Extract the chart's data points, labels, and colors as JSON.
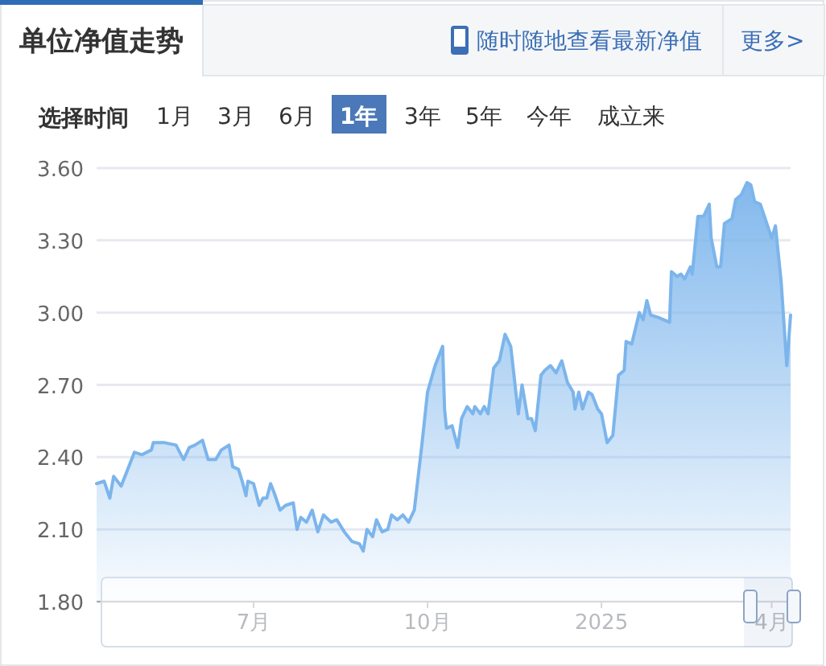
{
  "chart_data": {
    "type": "area",
    "title": "单位净值走势",
    "annotations": [
      "随时随地查看最新净值",
      "更多>",
      "选择时间",
      "1月",
      "3月",
      "6月",
      "1年",
      "3年",
      "5年",
      "今年",
      "成立来"
    ],
    "color": "#7cb5ec",
    "grid": "y",
    "marker": "none",
    "line_style": "solid",
    "xlim": [
      "2024-04-09",
      "2025-04-11"
    ],
    "xticks": [
      {
        "value": "2024-07-01",
        "label": "7月"
      },
      {
        "value": "2024-10-01",
        "label": "10月"
      },
      {
        "value": "2025-01-01",
        "label": "2025"
      },
      {
        "value": "2025-04-01",
        "label": "4月"
      }
    ],
    "ylim": [
      1.8,
      3.6
    ],
    "yticks": [
      {
        "value": 1.8,
        "label": "1.80"
      },
      {
        "value": 2.1,
        "label": "2.10"
      },
      {
        "value": 2.4,
        "label": "2.40"
      },
      {
        "value": 2.7,
        "label": "2.70"
      },
      {
        "value": 3.0,
        "label": "3.00"
      },
      {
        "value": 3.3,
        "label": "3.30"
      },
      {
        "value": 3.6,
        "label": "3.60"
      }
    ],
    "x": [
      "2024-04-09",
      "2024-04-13",
      "2024-04-16",
      "2024-04-18",
      "2024-04-22",
      "2024-04-28",
      "2024-04-29",
      "2024-05-03",
      "2024-05-08",
      "2024-05-09",
      "2024-05-15",
      "2024-05-21",
      "2024-05-25",
      "2024-05-28",
      "2024-05-31",
      "2024-06-04",
      "2024-06-07",
      "2024-06-11",
      "2024-06-14",
      "2024-06-18",
      "2024-06-20",
      "2024-06-23",
      "2024-06-25",
      "2024-06-27",
      "2024-06-28",
      "2024-07-01",
      "2024-07-04",
      "2024-07-06",
      "2024-07-08",
      "2024-07-10",
      "2024-07-12",
      "2024-07-15",
      "2024-07-18",
      "2024-07-22",
      "2024-07-24",
      "2024-07-26",
      "2024-07-29",
      "2024-08-01",
      "2024-08-04",
      "2024-08-07",
      "2024-08-11",
      "2024-08-14",
      "2024-08-18",
      "2024-08-22",
      "2024-08-26",
      "2024-08-28",
      "2024-08-30",
      "2024-09-02",
      "2024-09-04",
      "2024-09-07",
      "2024-09-10",
      "2024-09-12",
      "2024-09-15",
      "2024-09-18",
      "2024-09-21",
      "2024-09-24",
      "2024-09-28",
      "2024-10-01",
      "2024-10-05",
      "2024-10-09",
      "2024-10-10",
      "2024-10-11",
      "2024-10-14",
      "2024-10-17",
      "2024-10-19",
      "2024-10-22",
      "2024-10-25",
      "2024-10-26",
      "2024-10-29",
      "2024-10-31",
      "2024-11-02",
      "2024-11-05",
      "2024-11-08",
      "2024-11-11",
      "2024-11-14",
      "2024-11-17",
      "2024-11-18",
      "2024-11-20",
      "2024-11-23",
      "2024-11-25",
      "2024-11-27",
      "2024-11-30",
      "2024-12-02",
      "2024-12-05",
      "2024-12-08",
      "2024-12-11",
      "2024-12-14",
      "2024-12-17",
      "2024-12-18",
      "2024-12-20",
      "2024-12-22",
      "2024-12-25",
      "2024-12-27",
      "2024-12-30",
      "2025-01-01",
      "2025-01-04",
      "2025-01-07",
      "2025-01-10",
      "2025-01-13",
      "2025-01-14",
      "2025-01-17",
      "2025-01-21",
      "2025-01-23",
      "2025-01-25",
      "2025-01-27",
      "2025-01-31",
      "2025-02-06",
      "2025-02-07",
      "2025-02-10",
      "2025-02-12",
      "2025-02-14",
      "2025-02-17",
      "2025-02-18",
      "2025-02-21",
      "2025-02-24",
      "2025-02-27",
      "2025-02-28",
      "2025-03-03",
      "2025-03-05",
      "2025-03-07",
      "2025-03-11",
      "2025-03-13",
      "2025-03-16",
      "2025-03-19",
      "2025-03-21",
      "2025-03-23",
      "2025-03-26",
      "2025-03-29",
      "2025-04-01",
      "2025-04-03",
      "2025-04-06",
      "2025-04-09",
      "2025-04-11"
    ],
    "values": [
      2.29,
      2.3,
      2.23,
      2.32,
      2.28,
      2.4,
      2.42,
      2.41,
      2.43,
      2.46,
      2.46,
      2.45,
      2.39,
      2.44,
      2.45,
      2.47,
      2.39,
      2.39,
      2.43,
      2.45,
      2.36,
      2.35,
      2.3,
      2.24,
      2.3,
      2.29,
      2.2,
      2.23,
      2.23,
      2.29,
      2.25,
      2.18,
      2.2,
      2.21,
      2.1,
      2.15,
      2.13,
      2.18,
      2.09,
      2.16,
      2.13,
      2.14,
      2.09,
      2.05,
      2.04,
      2.01,
      2.1,
      2.07,
      2.14,
      2.09,
      2.1,
      2.16,
      2.14,
      2.16,
      2.13,
      2.18,
      2.45,
      2.67,
      2.78,
      2.86,
      2.6,
      2.52,
      2.53,
      2.44,
      2.56,
      2.61,
      2.58,
      2.61,
      2.58,
      2.61,
      2.58,
      2.77,
      2.8,
      2.91,
      2.86,
      2.65,
      2.58,
      2.7,
      2.56,
      2.56,
      2.51,
      2.74,
      2.76,
      2.78,
      2.75,
      2.8,
      2.71,
      2.67,
      2.6,
      2.67,
      2.6,
      2.67,
      2.66,
      2.6,
      2.58,
      2.46,
      2.49,
      2.74,
      2.76,
      2.88,
      2.87,
      3.0,
      2.97,
      3.05,
      2.99,
      2.98,
      2.96,
      3.17,
      3.15,
      3.16,
      3.14,
      3.19,
      3.16,
      3.4,
      3.4,
      3.45,
      3.31,
      3.19,
      3.19,
      3.37,
      3.39,
      3.47,
      3.49,
      3.54,
      3.53,
      3.46,
      3.45,
      3.38,
      3.31,
      3.36,
      3.13,
      2.78,
      2.99
    ]
  }
}
